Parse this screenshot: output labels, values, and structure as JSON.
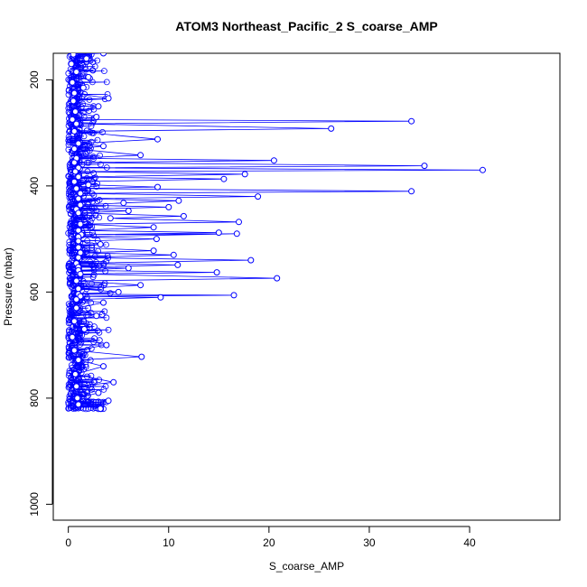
{
  "chart_data": {
    "type": "scatter",
    "title": "ATOM3 Northeast_Pacific_2 S_coarse_AMP",
    "xlabel": "S_coarse_AMP",
    "ylabel": "Pressure (mbar)",
    "xlim": [
      -1.5,
      49
    ],
    "ylim": [
      1030,
      150
    ],
    "y_reversed": true,
    "x_ticks": [
      0,
      10,
      20,
      30,
      40
    ],
    "y_ticks": [
      200,
      400,
      600,
      800,
      1000
    ],
    "grid": false,
    "legend": "none",
    "series_style": "points connected by lines",
    "color": "#0000ff",
    "series": [
      {
        "points": [
          [
            3.5,
            150
          ],
          [
            0.5,
            152
          ],
          [
            1.8,
            160
          ],
          [
            0.3,
            170
          ],
          [
            0.8,
            185
          ],
          [
            2.0,
            195
          ],
          [
            0.4,
            205
          ],
          [
            1.5,
            215
          ],
          [
            0.6,
            225
          ],
          [
            4.0,
            235
          ],
          [
            0.5,
            240
          ],
          [
            3.0,
            250
          ],
          [
            0.7,
            260
          ],
          [
            2.8,
            270
          ],
          [
            0.4,
            275
          ],
          [
            34.2,
            278
          ],
          [
            0.8,
            283
          ],
          [
            26.2,
            292
          ],
          [
            0.6,
            297
          ],
          [
            8.9,
            312
          ],
          [
            1.0,
            320
          ],
          [
            3.5,
            325
          ],
          [
            0.6,
            330
          ],
          [
            7.2,
            342
          ],
          [
            0.8,
            348
          ],
          [
            20.5,
            352
          ],
          [
            0.6,
            356
          ],
          [
            35.5,
            362
          ],
          [
            1.0,
            366
          ],
          [
            41.3,
            370
          ],
          [
            0.7,
            373
          ],
          [
            17.6,
            378
          ],
          [
            1.0,
            383
          ],
          [
            15.5,
            387
          ],
          [
            0.6,
            392
          ],
          [
            2.0,
            398
          ],
          [
            8.9,
            402
          ],
          [
            0.8,
            405
          ],
          [
            34.2,
            410
          ],
          [
            1.2,
            414
          ],
          [
            18.9,
            420
          ],
          [
            1.0,
            424
          ],
          [
            11.0,
            428
          ],
          [
            5.5,
            432
          ],
          [
            1.2,
            436
          ],
          [
            10.0,
            440
          ],
          [
            0.8,
            444
          ],
          [
            6.0,
            447
          ],
          [
            1.0,
            451
          ],
          [
            11.5,
            457
          ],
          [
            4.2,
            461
          ],
          [
            17.0,
            468
          ],
          [
            1.2,
            472
          ],
          [
            8.5,
            478
          ],
          [
            1.0,
            484
          ],
          [
            15.0,
            488
          ],
          [
            1.3,
            492
          ],
          [
            16.8,
            490
          ],
          [
            1.0,
            496
          ],
          [
            8.8,
            500
          ],
          [
            1.0,
            504
          ],
          [
            3.2,
            510
          ],
          [
            1.0,
            516
          ],
          [
            8.5,
            522
          ],
          [
            1.2,
            526
          ],
          [
            10.5,
            530
          ],
          [
            1.0,
            535
          ],
          [
            18.2,
            540
          ],
          [
            0.8,
            546
          ],
          [
            10.9,
            549
          ],
          [
            1.0,
            553
          ],
          [
            6.0,
            555
          ],
          [
            1.0,
            559
          ],
          [
            14.8,
            563
          ],
          [
            1.2,
            566
          ],
          [
            20.8,
            574
          ],
          [
            0.8,
            579
          ],
          [
            7.2,
            587
          ],
          [
            1.0,
            594
          ],
          [
            5.0,
            600
          ],
          [
            1.0,
            604
          ],
          [
            16.5,
            606
          ],
          [
            1.2,
            608
          ],
          [
            9.2,
            610
          ],
          [
            0.8,
            614
          ],
          [
            3.5,
            620
          ],
          [
            0.8,
            630
          ],
          [
            2.8,
            645
          ],
          [
            0.6,
            655
          ],
          [
            1.6,
            670
          ],
          [
            0.4,
            685
          ],
          [
            3.8,
            700
          ],
          [
            0.6,
            710
          ],
          [
            7.3,
            722
          ],
          [
            1.0,
            728
          ],
          [
            3.5,
            740
          ],
          [
            0.7,
            755
          ],
          [
            4.5,
            770
          ],
          [
            0.8,
            778
          ],
          [
            3.0,
            790
          ],
          [
            0.9,
            800
          ],
          [
            4.0,
            805
          ],
          [
            1.0,
            812
          ],
          [
            3.2,
            820
          ]
        ]
      }
    ]
  }
}
